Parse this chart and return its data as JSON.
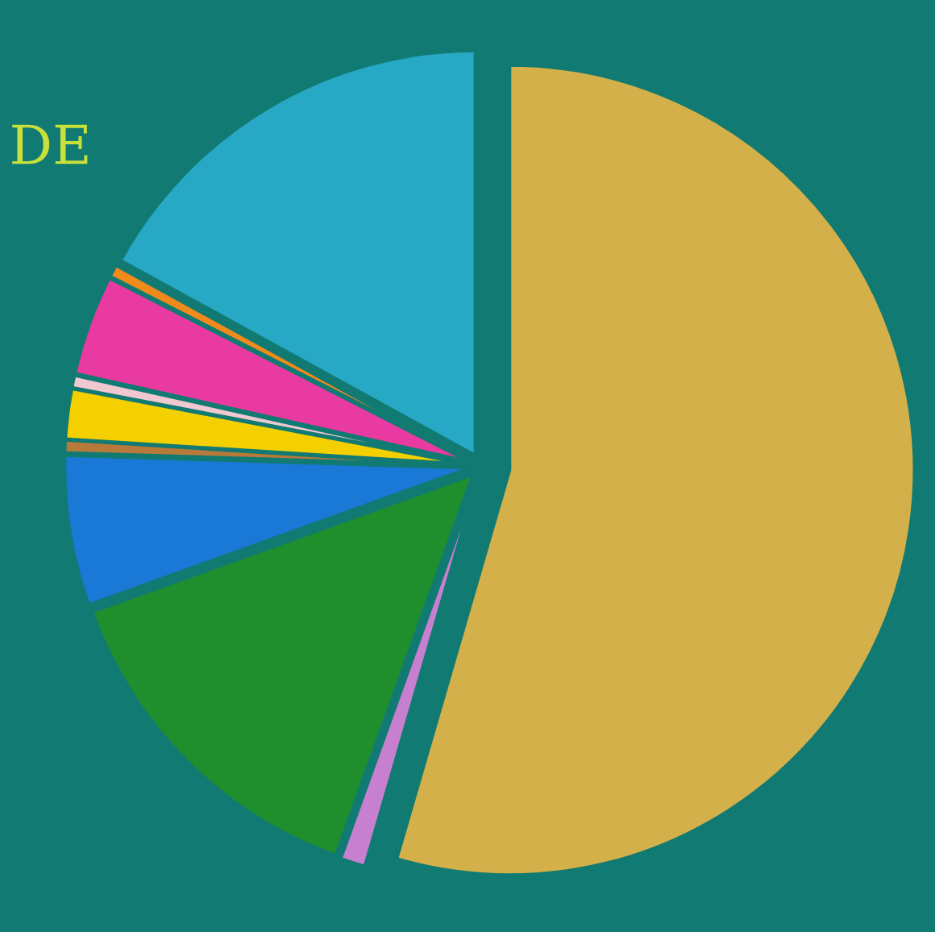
{
  "chart_data": {
    "type": "pie",
    "categories": [
      null,
      null,
      null,
      null,
      null,
      null,
      null,
      null,
      null,
      null
    ],
    "values": [
      54.5,
      1,
      14,
      6,
      0.5,
      2,
      0.5,
      4,
      0.5,
      17
    ],
    "colors": [
      "#d4b04a",
      "#c77fd0",
      "#1f8f2e",
      "#1a78d6",
      "#b87a3a",
      "#f5d000",
      "#f0c8d0",
      "#e83aa0",
      "#f08a1a",
      "#27a8c4"
    ],
    "annotations": [
      "DE"
    ]
  }
}
